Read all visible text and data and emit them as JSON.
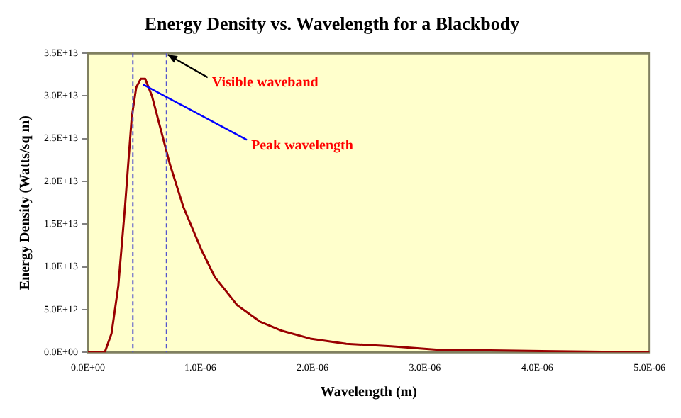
{
  "chart_data": {
    "type": "line",
    "title": "Energy Density vs. Wavelength for a Blackbody",
    "xlabel": "Wavelength (m)",
    "ylabel": "Energy Density (Watts/sq m)",
    "x": [
      0,
      1.5e-07,
      2.1e-07,
      2.7e-07,
      3.3e-07,
      3.9e-07,
      4.3e-07,
      4.7e-07,
      5.1e-07,
      5.7e-07,
      6.5e-07,
      7.3e-07,
      8.5e-07,
      1.01e-06,
      1.13e-06,
      1.33e-06,
      1.53e-06,
      1.73e-06,
      1.98e-06,
      2.3e-06,
      2.7e-06,
      3.1e-06,
      3.7e-06,
      4.3e-06,
      5e-06
    ],
    "series": [
      {
        "color": "#990000",
        "values": [
          0,
          0,
          2200000000000.0,
          7700000000000.0,
          17000000000000.0,
          27500000000000.0,
          31000000000000.0,
          32000000000000.0,
          32000000000000.0,
          30000000000000.0,
          26000000000000.0,
          22000000000000.0,
          17000000000000.0,
          12000000000000.0,
          8800000000000.0,
          5500000000000.0,
          3600000000000.0,
          2500000000000.0,
          1600000000000.0,
          1000000000000.0,
          700000000000.0,
          300000000000.0,
          200000000000.0,
          100000000000.0,
          0
        ]
      }
    ],
    "xlim": [
      0,
      5e-06
    ],
    "xticks": [
      {
        "value": 0,
        "label": "0.0E+00"
      },
      {
        "value": 1e-06,
        "label": "1.0E-06"
      },
      {
        "value": 2e-06,
        "label": "2.0E-06"
      },
      {
        "value": 3e-06,
        "label": "3.0E-06"
      },
      {
        "value": 4e-06,
        "label": "4.0E-06"
      },
      {
        "value": 5e-06,
        "label": "5.0E-06"
      }
    ],
    "ylim": [
      0,
      35000000000000.0
    ],
    "yticks": [
      {
        "value": 0,
        "label": "0.0E+00"
      },
      {
        "value": 5000000000000.0,
        "label": "5.0E+12"
      },
      {
        "value": 10000000000000.0,
        "label": "1.0E+13"
      },
      {
        "value": 15000000000000.0,
        "label": "1.5E+13"
      },
      {
        "value": 20000000000000.0,
        "label": "2.0E+13"
      },
      {
        "value": 25000000000000.0,
        "label": "2.5E+13"
      },
      {
        "value": 30000000000000.0,
        "label": "3.0E+13"
      },
      {
        "value": 35000000000000.0,
        "label": "3.5E+13"
      }
    ],
    "ref_lines": [
      {
        "axis": "x",
        "value": 4e-07,
        "color": "#5555cc",
        "line_style": "dashed"
      },
      {
        "axis": "x",
        "value": 7e-07,
        "color": "#5555cc",
        "line_style": "dashed"
      }
    ],
    "annotations": [
      {
        "text": "Visible waveband",
        "x": 7e-07,
        "y": 35000000000000.0
      },
      {
        "text": "Peak wavelength",
        "x": 4.8e-07,
        "y": 31500000000000.0
      }
    ],
    "grid": false,
    "legend": false,
    "marker": "none",
    "line_style": "solid"
  }
}
